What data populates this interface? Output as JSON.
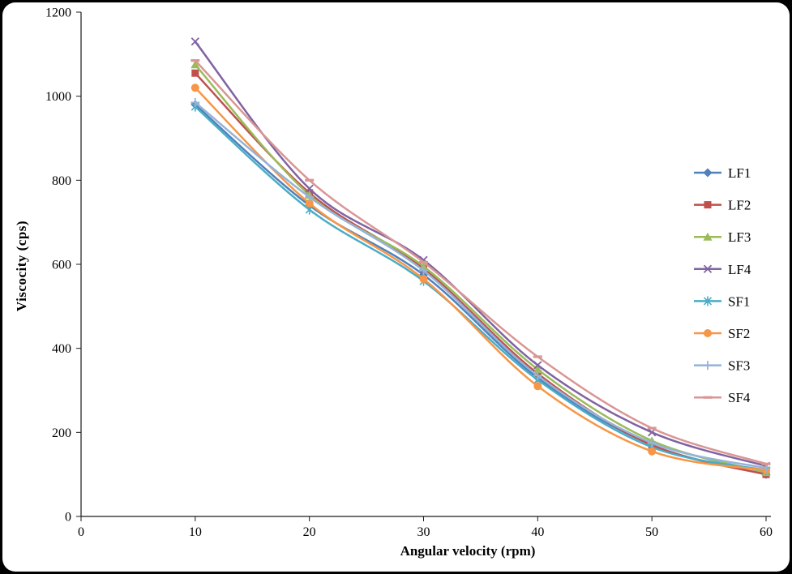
{
  "chart_data": {
    "type": "line",
    "title": "",
    "xlabel": "Angular velocity (rpm)",
    "ylabel": "Viscocity (cps)",
    "xlim": [
      0,
      60
    ],
    "ylim": [
      0,
      1200
    ],
    "xticks": [
      0,
      10,
      20,
      30,
      40,
      50,
      60
    ],
    "yticks": [
      0,
      200,
      400,
      600,
      800,
      1000,
      1200
    ],
    "x": [
      10,
      20,
      30,
      40,
      50,
      60
    ],
    "grid": false,
    "legend_position": "right",
    "line_style": "smooth",
    "series": [
      {
        "name": "LF1",
        "color": "#4F81BD",
        "marker": "diamond",
        "values": [
          980,
          740,
          575,
          330,
          170,
          100
        ]
      },
      {
        "name": "LF2",
        "color": "#C0504D",
        "marker": "square",
        "values": [
          1055,
          770,
          590,
          340,
          170,
          100
        ]
      },
      {
        "name": "LF3",
        "color": "#9BBB59",
        "marker": "triangle",
        "values": [
          1075,
          765,
          595,
          350,
          180,
          105
        ]
      },
      {
        "name": "LF4",
        "color": "#8064A2",
        "marker": "x",
        "values": [
          1130,
          780,
          610,
          360,
          200,
          120
        ]
      },
      {
        "name": "SF1",
        "color": "#4BACC6",
        "marker": "asterisk",
        "values": [
          975,
          730,
          560,
          325,
          165,
          110
        ]
      },
      {
        "name": "SF2",
        "color": "#F79646",
        "marker": "circle",
        "values": [
          1020,
          745,
          565,
          310,
          155,
          110
        ]
      },
      {
        "name": "SF3",
        "color": "#95B3D7",
        "marker": "plus",
        "values": [
          985,
          760,
          585,
          335,
          175,
          115
        ]
      },
      {
        "name": "SF4",
        "color": "#D99694",
        "marker": "dash",
        "values": [
          1085,
          800,
          605,
          380,
          210,
          125
        ]
      }
    ]
  }
}
